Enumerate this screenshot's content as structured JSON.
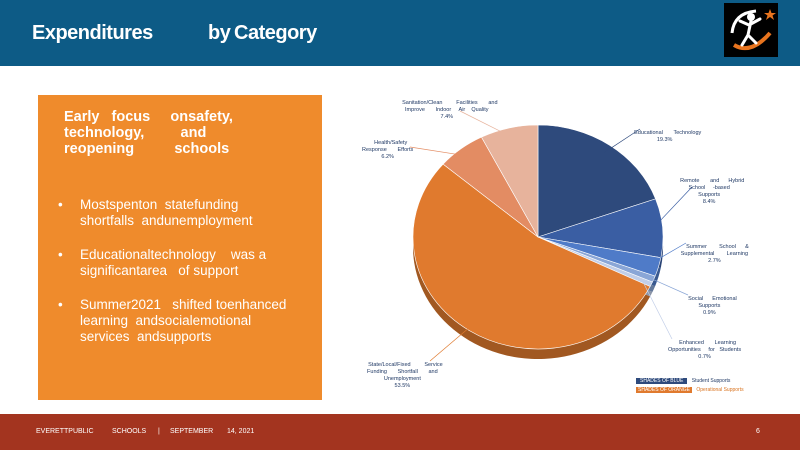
{
  "header": {
    "title_words": [
      "Expenditures",
      "by",
      "Category"
    ]
  },
  "panel": {
    "heading": "Early   focus     onsafety,\ntechnology,         and\nreopening          schools",
    "bullets": [
      "Mostspenton  statefunding\nshortfalls  andunemployment",
      "Educationaltechnology    was a\nsignificantarea   of support",
      "Summer2021   shifted toenhanced\nlearning  andsocialemotional\nservices  andsupports"
    ],
    "bullet_symbol": "•"
  },
  "chart_data": {
    "type": "pie",
    "title": "",
    "slices": [
      {
        "label": "Educational       Technology",
        "value": 19.3,
        "display": "19.3%",
        "color": "#2e4a7c"
      },
      {
        "label": "Remote       and      Hybrid\nSchool     -based\nSupports",
        "value": 8.4,
        "display": "8.4%",
        "color": "#3a5ea3"
      },
      {
        "label": "Summer        School      &\nSupplemental        Learning",
        "value": 2.7,
        "display": "2.7%",
        "color": "#4f7bc8"
      },
      {
        "label": "Social      Emotional\nSupports",
        "value": 0.9,
        "display": "0.9%",
        "color": "#8aa6d6"
      },
      {
        "label": "Enhanced       Learning\nOpportunities     for   Students",
        "value": 0.7,
        "display": "0.7%",
        "color": "#c1cee8"
      },
      {
        "label": "State/Local/Fixed         Service\nFunding       Shortfall       and\nUnemployment",
        "value": 53.5,
        "display": "53.5%",
        "color": "#e07a2e"
      },
      {
        "label": "Health/Safety\nResponse       Efforts",
        "value": 6.2,
        "display": "6.2%",
        "color": "#e38c63"
      },
      {
        "label": "Sanitation/Clean         Facilities       and\nImprove       Indoor     Air    Quality",
        "value": 7.4,
        "display": "7.4%",
        "color": "#e7b39c"
      }
    ],
    "legend": [
      {
        "swatch_text": "SHADES OF BLUE",
        "label": "Student       Supports",
        "color": "#2e4a7c"
      },
      {
        "swatch_text": "SHADES OF ORANGE",
        "label": "Operational        Supports",
        "color": "#e07a2e"
      }
    ]
  },
  "footer": {
    "org": "EVERETTPUBLIC",
    "dept": "SCHOOLS",
    "sep": "|",
    "date_month": "SEPTEMBER",
    "date_rest": "14,   2021",
    "page": "6"
  },
  "colors": {
    "header_bg": "#0d5b86",
    "panel_bg": "#ef8b2c",
    "footer_bg": "#a3341f"
  }
}
